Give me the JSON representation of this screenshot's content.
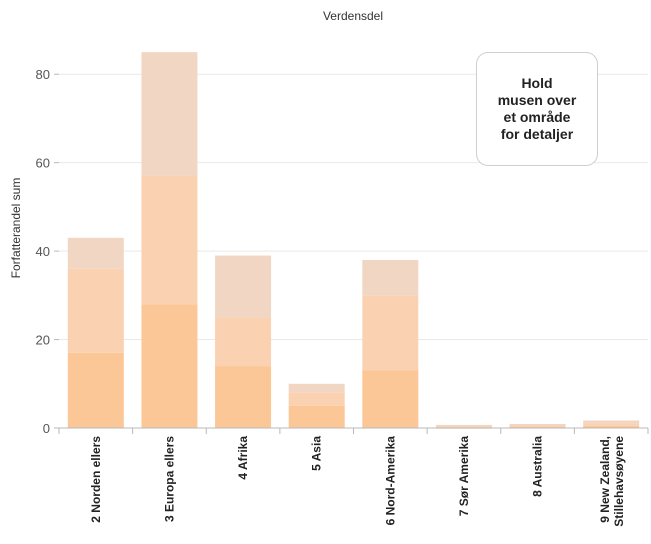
{
  "chart_data": {
    "type": "bar",
    "title": "Verdensdel",
    "ylabel": "Forfatterandel sum",
    "xlabel": "",
    "ylim": [
      0,
      90
    ],
    "yticks": [
      0,
      20,
      40,
      60,
      80
    ],
    "grid": true,
    "categories": [
      "2 Norden ellers",
      "3 Europa ellers",
      "4 Afrika",
      "5 Asia",
      "6 Nord-Amerika",
      "7 Sør Amerika",
      "8 Australia",
      "9 New Zealand, Stillehavsøyene"
    ],
    "stacked": true,
    "series": [
      {
        "values": [
          17,
          28,
          14,
          5,
          13,
          0.2,
          0.3,
          0.5
        ]
      },
      {
        "values": [
          19,
          29,
          11,
          3,
          17,
          0.3,
          0.3,
          0.6
        ]
      },
      {
        "values": [
          7,
          28,
          14,
          2,
          8,
          0.2,
          0.3,
          0.6
        ]
      }
    ],
    "colors": [
      "#fcc797",
      "#fad2b2",
      "#f2d6c4"
    ]
  },
  "hover_box": {
    "text": "Hold\nmusen over\net område\nfor detaljer"
  }
}
